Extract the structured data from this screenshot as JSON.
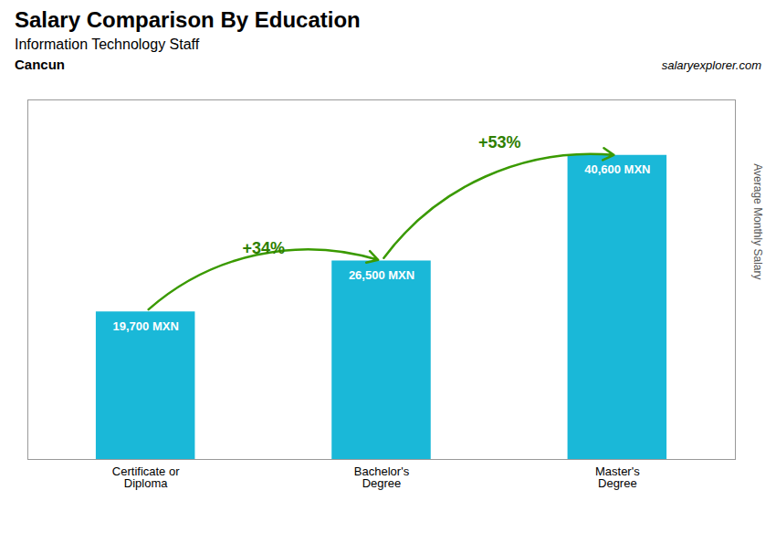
{
  "chart_data": {
    "type": "bar",
    "title": "Salary Comparison By Education",
    "subtitle": "Information Technology Staff",
    "annotations": [
      "Cancun",
      "salaryexplorer.com",
      "+34%",
      "+53%"
    ],
    "ylabel": "Average Monthly Salary",
    "categories": [
      "Certificate or\nDiploma",
      "Bachelor's\nDegree",
      "Master's\nDegree"
    ],
    "values": [
      19700,
      26500,
      40600
    ],
    "value_labels": [
      "19,700 MXN",
      "26,500 MXN",
      "40,600 MXN"
    ],
    "data_labels": true,
    "color": "#1ab8d8",
    "ylim": [
      0,
      48000
    ],
    "tick_labels": "x"
  }
}
